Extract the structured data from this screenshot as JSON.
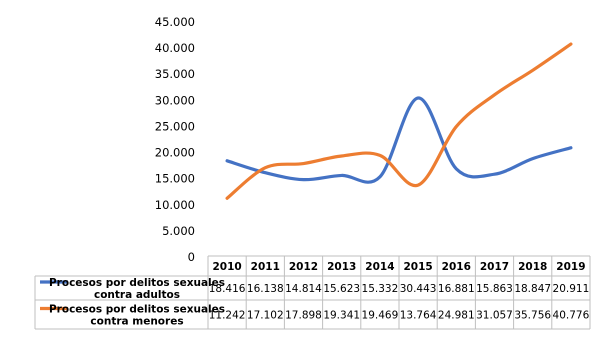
{
  "chart_data": {
    "type": "line",
    "title": "",
    "xlabel": "",
    "ylabel": "",
    "ylim": [
      0,
      45000
    ],
    "y_ticks": [
      "0",
      "5.000",
      "10.000",
      "15.000",
      "20.000",
      "25.000",
      "30.000",
      "35.000",
      "40.000",
      "45.000"
    ],
    "categories": [
      "2010",
      "2011",
      "2012",
      "2013",
      "2014",
      "2015",
      "2016",
      "2017",
      "2018",
      "2019"
    ],
    "grid": false,
    "legend_placement": "data-table",
    "series": [
      {
        "name": "Procesos por delitos sexuales contra adultos",
        "color": "#4472C4",
        "values": [
          18416,
          16138,
          14814,
          15623,
          15332,
          30443,
          16881,
          15863,
          18847,
          20911
        ],
        "value_labels": [
          "18.416",
          "16.138",
          "14.814",
          "15.623",
          "15.332",
          "30.443",
          "16.881",
          "15.863",
          "18.847",
          "20.911"
        ]
      },
      {
        "name": "Procesos por delitos sexuales contra menores",
        "color": "#ED7D31",
        "values": [
          11242,
          17102,
          17898,
          19341,
          19469,
          13764,
          24981,
          31057,
          35756,
          40776
        ],
        "value_labels": [
          "11.242",
          "17.102",
          "17.898",
          "19.341",
          "19.469",
          "13.764",
          "24.981",
          "31.057",
          "35.756",
          "40.776"
        ]
      }
    ]
  }
}
